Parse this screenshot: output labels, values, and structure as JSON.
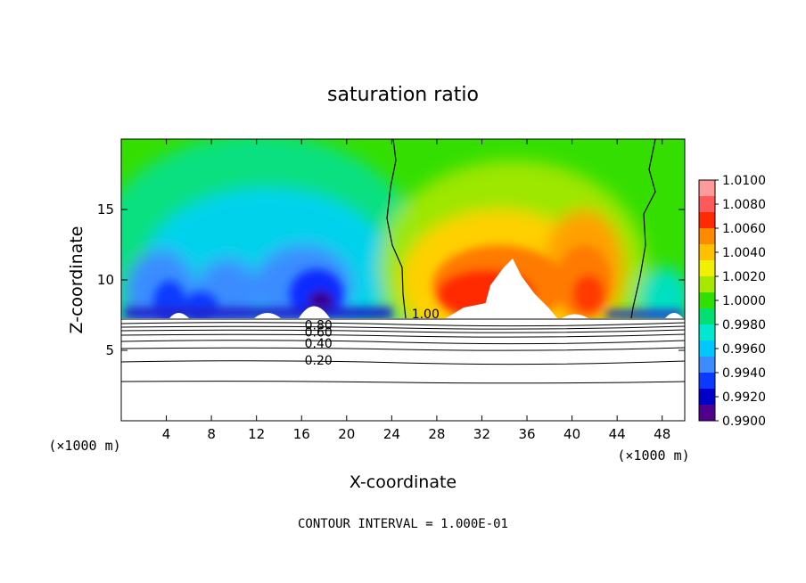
{
  "chart_data": {
    "type": "heatmap",
    "title": "saturation ratio",
    "xlabel": "X-coordinate",
    "ylabel": "Z-coordinate",
    "x_unit_left": "(×1000 m)",
    "x_unit_right": "(×1000 m)",
    "xlim": [
      0,
      50
    ],
    "ylim": [
      0,
      20
    ],
    "x_ticks": [
      4,
      8,
      12,
      16,
      20,
      24,
      28,
      32,
      36,
      40,
      44,
      48
    ],
    "y_ticks": [
      5,
      10,
      15
    ],
    "colorbar": {
      "levels": [
        "1.0100",
        "1.0080",
        "1.0060",
        "1.0040",
        "1.0020",
        "1.0000",
        "0.9980",
        "0.9960",
        "0.9940",
        "0.9920",
        "0.9900"
      ],
      "colors": [
        "#ff9a9a",
        "#ff5a5a",
        "#ff2a00",
        "#ff8a00",
        "#ffc000",
        "#f0f000",
        "#a8e800",
        "#30e000",
        "#00e070",
        "#00e8d0",
        "#00c8ff",
        "#3a8cff",
        "#0a3aff",
        "#0000c8",
        "#50008c"
      ],
      "range": [
        0.99,
        1.01
      ]
    },
    "contour_labels": [
      {
        "text": "1.00",
        "x": 27.0,
        "z": 7.6
      },
      {
        "text": "0.80",
        "x": 17.5,
        "z": 6.8
      },
      {
        "text": "0.60",
        "x": 17.5,
        "z": 6.3
      },
      {
        "text": "0.40",
        "x": 17.5,
        "z": 5.5
      },
      {
        "text": "0.20",
        "x": 17.5,
        "z": 4.3
      }
    ],
    "footnote": "CONTOUR INTERVAL = 1.000E-01"
  }
}
